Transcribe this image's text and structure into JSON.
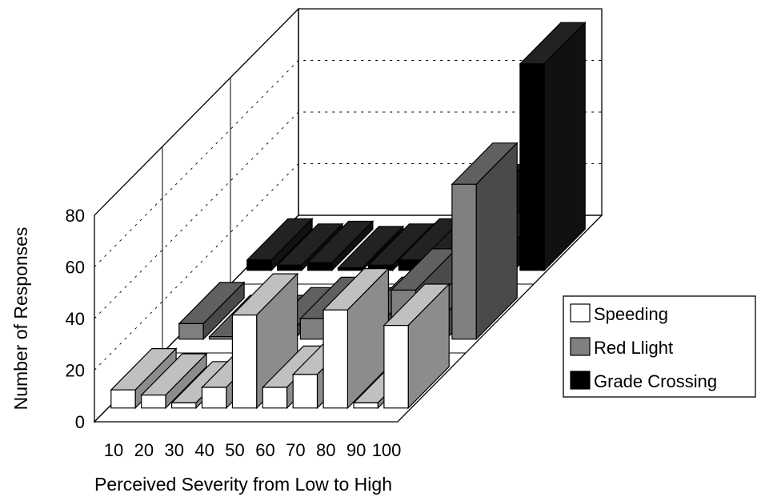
{
  "chart_data": {
    "type": "bar",
    "style": "3d-clustered-depth",
    "categories": [
      "10",
      "20",
      "30",
      "40",
      "50",
      "60",
      "70",
      "80",
      "90",
      "100"
    ],
    "series": [
      {
        "name": "Speeding",
        "color": "#ffffff",
        "values": [
          7,
          5,
          2,
          8,
          36,
          8,
          13,
          38,
          2,
          32
        ]
      },
      {
        "name": "Red Llight",
        "color": "#808080",
        "values": [
          6,
          1,
          1,
          4,
          8,
          4,
          8,
          19,
          10,
          60
        ]
      },
      {
        "name": "Grade Crossing",
        "color": "#000000",
        "values": [
          4,
          2,
          3,
          1,
          2,
          4,
          7,
          25,
          11,
          80
        ]
      }
    ],
    "xlabel": "Perceived Severity from Low to High",
    "ylabel": "Number of Responses",
    "yticks": [
      "0",
      "20",
      "40",
      "60",
      "80"
    ],
    "ylim": [
      0,
      80
    ],
    "grid": true,
    "legend_position": "right"
  }
}
